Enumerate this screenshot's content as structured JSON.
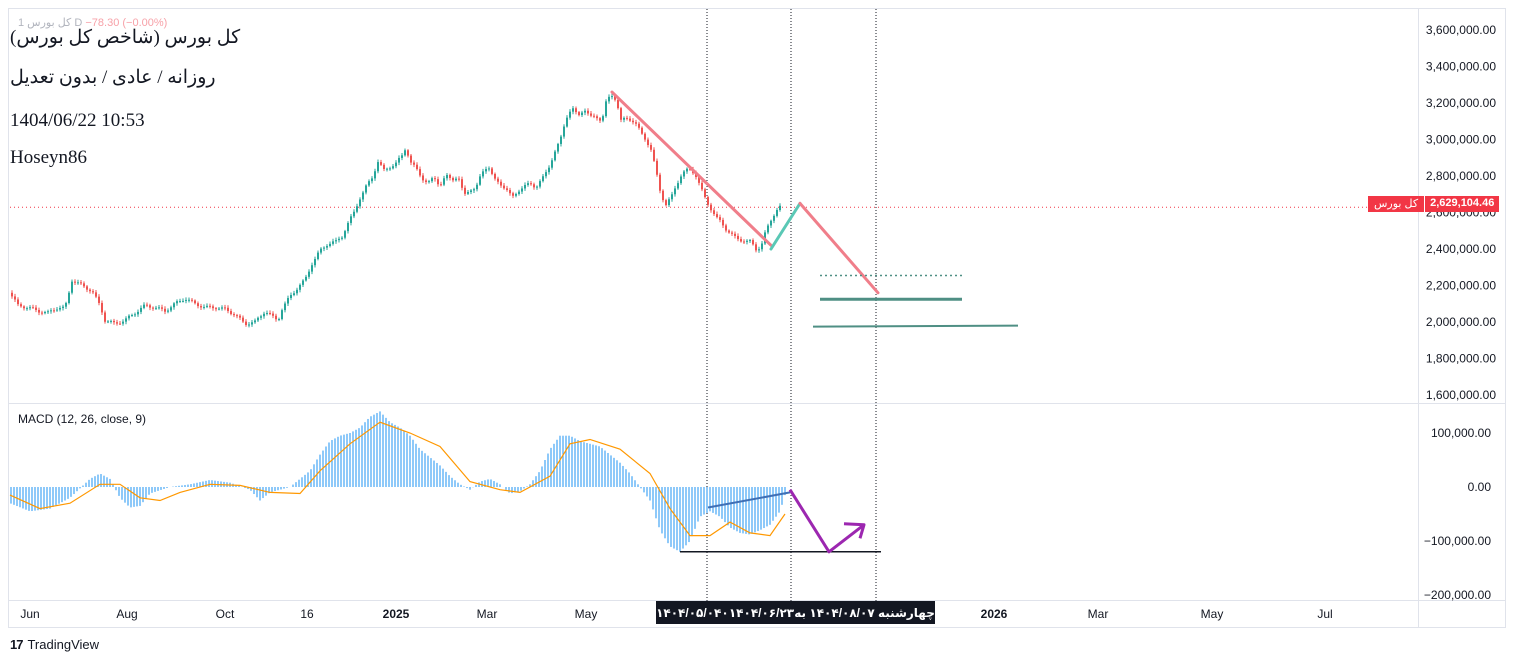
{
  "header": {
    "topline_name": "کل بورس  1  D",
    "topline_change": "−78.30 (−0.00%)",
    "title_line": "کل بورس (شاخص کل بورس)",
    "interval_line": "روزانه / عادی / بدون تعدیل",
    "datetime_line": "1404/06/22 10:53",
    "author_line": "Hoseyn86"
  },
  "price_tag": {
    "name": "کل بورس",
    "value": "2,629,104.46"
  },
  "macd_label": "MACD (12, 26, close, 9)",
  "date_box": {
    "date1": "۱۴۰۴/۰۵/۰۴۰",
    "date2": "۱۴۰۴/۰۶/۲۳",
    "date3": "چهارشنبه ۱۴۰۴/۰۸/۰۷ به"
  },
  "watermark": "TradingView",
  "colors": {
    "up": "#26a69a",
    "down": "#ef5350",
    "macd_hist": "#42a5f5",
    "signal": "#ff9800",
    "trend_down": "#f07e8a",
    "trend_up": "#5ac8b5",
    "support": "#4f8f84",
    "macd_arrow": "#9c27b0",
    "macd_trend": "#3f6fb5"
  },
  "chart_data": [
    {
      "type": "candlestick",
      "ylim": [
        1500000,
        3700000
      ],
      "y_ticks": [
        "3,600,000.00",
        "3,400,000.00",
        "3,200,000.00",
        "3,000,000.00",
        "2,800,000.00",
        "2,600,000.00",
        "2,400,000.00",
        "2,200,000.00",
        "2,000,000.00",
        "1,800,000.00",
        "1,600,000.00"
      ],
      "y_tick_values": [
        3600000,
        3400000,
        3200000,
        3000000,
        2800000,
        2600000,
        2400000,
        2200000,
        2000000,
        1800000,
        1600000
      ],
      "x_ticks": [
        "Jun",
        "Aug",
        "Oct",
        "16",
        "2025",
        "Mar",
        "May",
        "2026",
        "Mar",
        "May",
        "Jul"
      ],
      "last_price": 2629104.46,
      "price_path": [
        [
          0,
          2160000
        ],
        [
          8,
          2090000
        ],
        [
          18,
          2080000
        ],
        [
          28,
          2060000
        ],
        [
          38,
          2050000
        ],
        [
          48,
          2080000
        ],
        [
          55,
          2075000
        ],
        [
          58,
          2140000
        ],
        [
          62,
          2230000
        ],
        [
          72,
          2200000
        ],
        [
          82,
          2170000
        ],
        [
          90,
          2090000
        ],
        [
          95,
          2010000
        ],
        [
          105,
          1990000
        ],
        [
          115,
          2010000
        ],
        [
          125,
          2050000
        ],
        [
          135,
          2090000
        ],
        [
          145,
          2080000
        ],
        [
          155,
          2060000
        ],
        [
          165,
          2100000
        ],
        [
          175,
          2130000
        ],
        [
          185,
          2100000
        ],
        [
          195,
          2080000
        ],
        [
          205,
          2080000
        ],
        [
          215,
          2070000
        ],
        [
          225,
          2040000
        ],
        [
          235,
          1990000
        ],
        [
          245,
          2000000
        ],
        [
          255,
          2060000
        ],
        [
          262,
          2030000
        ],
        [
          268,
          2010000
        ],
        [
          272,
          2070000
        ],
        [
          280,
          2140000
        ],
        [
          288,
          2190000
        ],
        [
          295,
          2230000
        ],
        [
          302,
          2320000
        ],
        [
          310,
          2390000
        ],
        [
          318,
          2430000
        ],
        [
          326,
          2440000
        ],
        [
          332,
          2470000
        ],
        [
          338,
          2540000
        ],
        [
          344,
          2600000
        ],
        [
          350,
          2680000
        ],
        [
          356,
          2740000
        ],
        [
          362,
          2790000
        ],
        [
          368,
          2880000
        ],
        [
          374,
          2830000
        ],
        [
          380,
          2850000
        ],
        [
          386,
          2870000
        ],
        [
          392,
          2910000
        ],
        [
          396,
          2960000
        ],
        [
          400,
          2880000
        ],
        [
          406,
          2840000
        ],
        [
          412,
          2790000
        ],
        [
          418,
          2760000
        ],
        [
          424,
          2790000
        ],
        [
          430,
          2750000
        ],
        [
          436,
          2800000
        ],
        [
          442,
          2780000
        ],
        [
          448,
          2800000
        ],
        [
          454,
          2690000
        ],
        [
          460,
          2730000
        ],
        [
          466,
          2730000
        ],
        [
          472,
          2820000
        ],
        [
          478,
          2860000
        ],
        [
          484,
          2780000
        ],
        [
          490,
          2760000
        ],
        [
          496,
          2730000
        ],
        [
          502,
          2680000
        ],
        [
          508,
          2720000
        ],
        [
          514,
          2740000
        ],
        [
          520,
          2760000
        ],
        [
          526,
          2740000
        ],
        [
          532,
          2780000
        ],
        [
          538,
          2840000
        ],
        [
          544,
          2920000
        ],
        [
          550,
          2990000
        ],
        [
          556,
          3120000
        ],
        [
          562,
          3170000
        ],
        [
          568,
          3130000
        ],
        [
          574,
          3170000
        ],
        [
          580,
          3120000
        ],
        [
          586,
          3130000
        ],
        [
          592,
          3100000
        ],
        [
          596,
          3200000
        ],
        [
          601,
          3250000
        ],
        [
          606,
          3220000
        ],
        [
          611,
          3100000
        ],
        [
          616,
          3120000
        ],
        [
          621,
          3110000
        ],
        [
          626,
          3080000
        ],
        [
          631,
          3040000
        ],
        [
          636,
          3000000
        ],
        [
          641,
          2940000
        ],
        [
          646,
          2830000
        ],
        [
          651,
          2700000
        ],
        [
          656,
          2640000
        ],
        [
          661,
          2680000
        ],
        [
          666,
          2750000
        ],
        [
          671,
          2800000
        ],
        [
          676,
          2830000
        ],
        [
          681,
          2840000
        ],
        [
          686,
          2800000
        ],
        [
          691,
          2730000
        ],
        [
          696,
          2670000
        ],
        [
          701,
          2620000
        ],
        [
          706,
          2570000
        ],
        [
          711,
          2550000
        ],
        [
          716,
          2510000
        ],
        [
          721,
          2480000
        ],
        [
          726,
          2460000
        ],
        [
          731,
          2450000
        ],
        [
          736,
          2440000
        ],
        [
          741,
          2440000
        ],
        [
          746,
          2400000
        ],
        [
          751,
          2410000
        ],
        [
          756,
          2500000
        ],
        [
          761,
          2560000
        ],
        [
          766,
          2610000
        ],
        [
          770,
          2629104
        ]
      ]
    },
    {
      "type": "macd",
      "name": "MACD (12, 26, close, 9)",
      "ylim": [
        -230000,
        140000
      ],
      "y_ticks": [
        "100,000.00",
        "0.00",
        "−100,000.00",
        "−200,000.00"
      ],
      "y_tick_values": [
        100000,
        0,
        -100000,
        -200000
      ],
      "hist_path": [
        [
          0,
          -30000
        ],
        [
          20,
          -45000
        ],
        [
          40,
          -40000
        ],
        [
          60,
          -20000
        ],
        [
          80,
          15000
        ],
        [
          90,
          25000
        ],
        [
          100,
          15000
        ],
        [
          110,
          -20000
        ],
        [
          120,
          -38000
        ],
        [
          130,
          -35000
        ],
        [
          140,
          -12000
        ],
        [
          160,
          0
        ],
        [
          180,
          5000
        ],
        [
          200,
          13000
        ],
        [
          220,
          8000
        ],
        [
          240,
          -5000
        ],
        [
          250,
          -25000
        ],
        [
          260,
          -10000
        ],
        [
          270,
          -5000
        ],
        [
          280,
          0
        ],
        [
          300,
          30000
        ],
        [
          310,
          60000
        ],
        [
          320,
          85000
        ],
        [
          330,
          95000
        ],
        [
          340,
          100000
        ],
        [
          350,
          110000
        ],
        [
          360,
          130000
        ],
        [
          370,
          140000
        ],
        [
          380,
          120000
        ],
        [
          390,
          110000
        ],
        [
          400,
          95000
        ],
        [
          410,
          70000
        ],
        [
          420,
          55000
        ],
        [
          430,
          40000
        ],
        [
          440,
          20000
        ],
        [
          450,
          5000
        ],
        [
          460,
          -5000
        ],
        [
          470,
          10000
        ],
        [
          480,
          15000
        ],
        [
          490,
          5000
        ],
        [
          500,
          -12000
        ],
        [
          510,
          -8000
        ],
        [
          520,
          5000
        ],
        [
          530,
          30000
        ],
        [
          540,
          70000
        ],
        [
          550,
          95000
        ],
        [
          560,
          95000
        ],
        [
          570,
          85000
        ],
        [
          580,
          80000
        ],
        [
          590,
          75000
        ],
        [
          600,
          60000
        ],
        [
          610,
          45000
        ],
        [
          620,
          25000
        ],
        [
          630,
          0
        ],
        [
          640,
          -25000
        ],
        [
          650,
          -80000
        ],
        [
          660,
          -110000
        ],
        [
          670,
          -120000
        ],
        [
          680,
          -100000
        ],
        [
          690,
          -55000
        ],
        [
          700,
          -45000
        ],
        [
          710,
          -55000
        ],
        [
          720,
          -75000
        ],
        [
          730,
          -85000
        ],
        [
          740,
          -88000
        ],
        [
          750,
          -80000
        ],
        [
          760,
          -70000
        ],
        [
          770,
          -45000
        ],
        [
          775,
          -15000
        ]
      ],
      "signal_path": [
        [
          0,
          -15000
        ],
        [
          30,
          -40000
        ],
        [
          60,
          -30000
        ],
        [
          90,
          5000
        ],
        [
          110,
          5000
        ],
        [
          130,
          -20000
        ],
        [
          150,
          -25000
        ],
        [
          170,
          -10000
        ],
        [
          200,
          5000
        ],
        [
          230,
          3000
        ],
        [
          260,
          -10000
        ],
        [
          290,
          -12000
        ],
        [
          310,
          30000
        ],
        [
          340,
          80000
        ],
        [
          370,
          120000
        ],
        [
          400,
          100000
        ],
        [
          430,
          75000
        ],
        [
          460,
          10000
        ],
        [
          490,
          -5000
        ],
        [
          510,
          -10000
        ],
        [
          540,
          20000
        ],
        [
          560,
          80000
        ],
        [
          580,
          88000
        ],
        [
          610,
          70000
        ],
        [
          640,
          25000
        ],
        [
          660,
          -40000
        ],
        [
          680,
          -90000
        ],
        [
          700,
          -90000
        ],
        [
          720,
          -65000
        ],
        [
          740,
          -85000
        ],
        [
          760,
          -90000
        ],
        [
          775,
          -50000
        ]
      ]
    }
  ]
}
